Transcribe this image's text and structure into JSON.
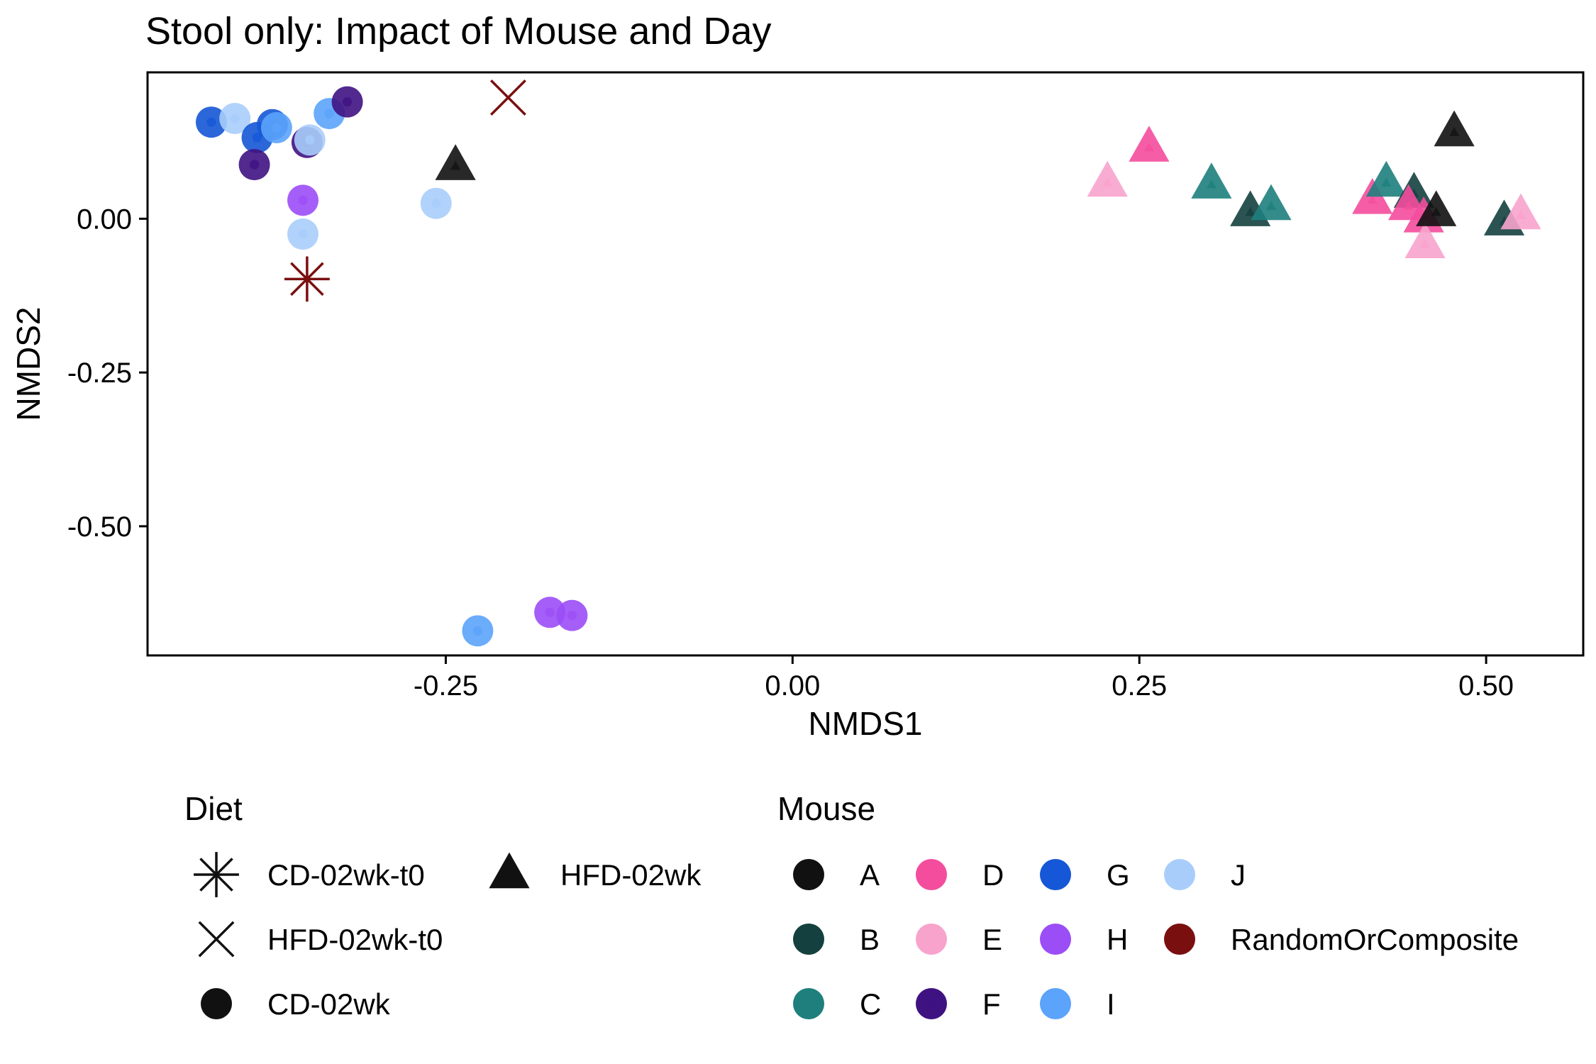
{
  "chart_data": {
    "type": "scatter",
    "title": "Stool only: Impact of Mouse and Day",
    "xlabel": "NMDS1",
    "ylabel": "NMDS2",
    "xlim": [
      -0.465,
      0.57
    ],
    "ylim": [
      -0.71,
      0.238
    ],
    "xticks": [
      -0.25,
      0.0,
      0.25,
      0.5
    ],
    "xtick_labels": [
      "-0.25",
      "0.00",
      "0.25",
      "0.50"
    ],
    "yticks": [
      0.0,
      -0.25,
      -0.5
    ],
    "ytick_labels": [
      "0.00",
      "-0.25",
      "-0.50"
    ],
    "grid": false,
    "legend_position": "bottom",
    "legends": {
      "diet": {
        "title": "Diet",
        "items": [
          {
            "key": "CD-02wk-t0",
            "label": "CD-02wk-t0",
            "shape": "asterisk"
          },
          {
            "key": "HFD-02wk-t0",
            "label": "HFD-02wk-t0",
            "shape": "cross"
          },
          {
            "key": "CD-02wk",
            "label": "CD-02wk",
            "shape": "circle"
          },
          {
            "key": "HFD-02wk",
            "label": "HFD-02wk",
            "shape": "triangle"
          }
        ]
      },
      "mouse": {
        "title": "Mouse",
        "items": [
          {
            "key": "A",
            "label": "A",
            "color": "#111111"
          },
          {
            "key": "B",
            "label": "B",
            "color": "#14403f"
          },
          {
            "key": "C",
            "label": "C",
            "color": "#1e7f7d"
          },
          {
            "key": "D",
            "label": "D",
            "color": "#f44d9d"
          },
          {
            "key": "E",
            "label": "E",
            "color": "#f8a3cc"
          },
          {
            "key": "F",
            "label": "F",
            "color": "#3f1282"
          },
          {
            "key": "G",
            "label": "G",
            "color": "#1557d6"
          },
          {
            "key": "H",
            "label": "H",
            "color": "#9b4df6"
          },
          {
            "key": "I",
            "label": "I",
            "color": "#5ba3fb"
          },
          {
            "key": "J",
            "label": "J",
            "color": "#a9cdfb"
          },
          {
            "key": "RandomOrComposite",
            "label": "RandomOrComposite",
            "color": "#7a0f10"
          }
        ]
      }
    },
    "points": [
      {
        "x": -0.419,
        "y": 0.157,
        "diet": "CD-02wk",
        "mouse": "G"
      },
      {
        "x": -0.402,
        "y": 0.163,
        "diet": "CD-02wk",
        "mouse": "J"
      },
      {
        "x": -0.386,
        "y": 0.132,
        "diet": "CD-02wk",
        "mouse": "G"
      },
      {
        "x": -0.375,
        "y": 0.153,
        "diet": "CD-02wk",
        "mouse": "G"
      },
      {
        "x": -0.372,
        "y": 0.148,
        "diet": "CD-02wk",
        "mouse": "I"
      },
      {
        "x": -0.388,
        "y": 0.088,
        "diet": "CD-02wk",
        "mouse": "F"
      },
      {
        "x": -0.35,
        "y": 0.124,
        "diet": "CD-02wk",
        "mouse": "F"
      },
      {
        "x": -0.348,
        "y": 0.128,
        "diet": "CD-02wk",
        "mouse": "J"
      },
      {
        "x": -0.334,
        "y": 0.171,
        "diet": "CD-02wk",
        "mouse": "I"
      },
      {
        "x": -0.321,
        "y": 0.19,
        "diet": "CD-02wk",
        "mouse": "F"
      },
      {
        "x": -0.353,
        "y": 0.03,
        "diet": "CD-02wk",
        "mouse": "H"
      },
      {
        "x": -0.353,
        "y": -0.025,
        "diet": "CD-02wk",
        "mouse": "J"
      },
      {
        "x": -0.257,
        "y": 0.025,
        "diet": "CD-02wk",
        "mouse": "J"
      },
      {
        "x": -0.227,
        "y": -0.67,
        "diet": "CD-02wk",
        "mouse": "I"
      },
      {
        "x": -0.175,
        "y": -0.64,
        "diet": "CD-02wk",
        "mouse": "H"
      },
      {
        "x": -0.159,
        "y": -0.645,
        "diet": "CD-02wk",
        "mouse": "H"
      },
      {
        "x": -0.35,
        "y": -0.098,
        "diet": "CD-02wk-t0",
        "mouse": "RandomOrComposite"
      },
      {
        "x": -0.205,
        "y": 0.197,
        "diet": "HFD-02wk-t0",
        "mouse": "RandomOrComposite"
      },
      {
        "x": -0.243,
        "y": 0.085,
        "diet": "HFD-02wk",
        "mouse": "A"
      },
      {
        "x": 0.227,
        "y": 0.058,
        "diet": "HFD-02wk",
        "mouse": "E"
      },
      {
        "x": 0.257,
        "y": 0.115,
        "diet": "HFD-02wk",
        "mouse": "D"
      },
      {
        "x": 0.302,
        "y": 0.055,
        "diet": "HFD-02wk",
        "mouse": "C"
      },
      {
        "x": 0.33,
        "y": 0.01,
        "diet": "HFD-02wk",
        "mouse": "B"
      },
      {
        "x": 0.345,
        "y": 0.02,
        "diet": "HFD-02wk",
        "mouse": "C"
      },
      {
        "x": 0.418,
        "y": 0.03,
        "diet": "HFD-02wk",
        "mouse": "D"
      },
      {
        "x": 0.428,
        "y": 0.058,
        "diet": "HFD-02wk",
        "mouse": "C"
      },
      {
        "x": 0.448,
        "y": 0.04,
        "diet": "HFD-02wk",
        "mouse": "B"
      },
      {
        "x": 0.444,
        "y": 0.02,
        "diet": "HFD-02wk",
        "mouse": "D"
      },
      {
        "x": 0.455,
        "y": 0.0,
        "diet": "HFD-02wk",
        "mouse": "D"
      },
      {
        "x": 0.456,
        "y": -0.042,
        "diet": "HFD-02wk",
        "mouse": "E"
      },
      {
        "x": 0.464,
        "y": 0.01,
        "diet": "HFD-02wk",
        "mouse": "A"
      },
      {
        "x": 0.477,
        "y": 0.14,
        "diet": "HFD-02wk",
        "mouse": "A"
      },
      {
        "x": 0.513,
        "y": -0.005,
        "diet": "HFD-02wk",
        "mouse": "B"
      },
      {
        "x": 0.525,
        "y": 0.005,
        "diet": "HFD-02wk",
        "mouse": "E"
      }
    ]
  }
}
